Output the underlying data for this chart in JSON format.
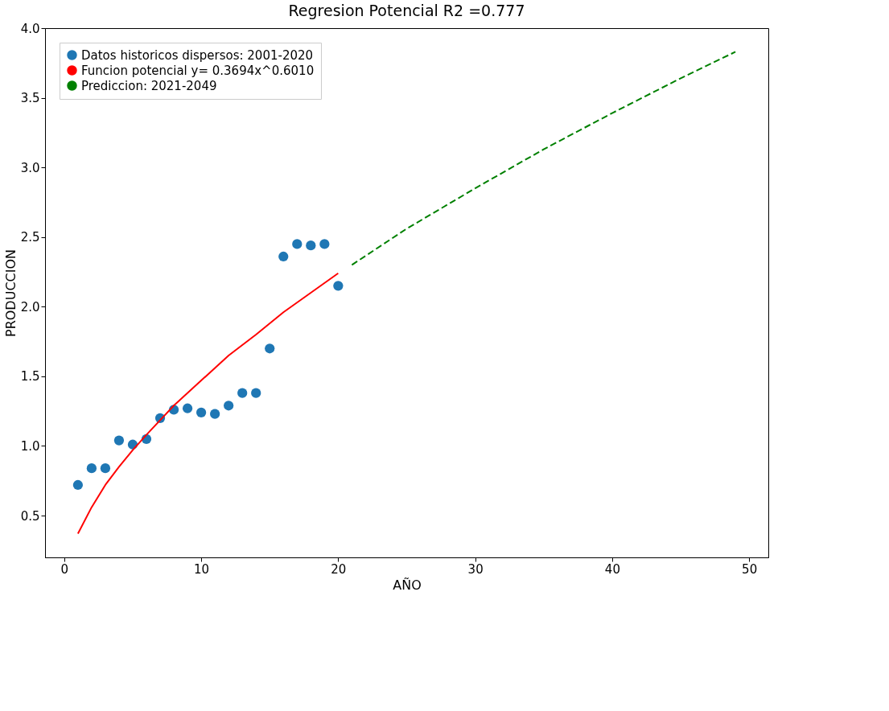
{
  "chart_data": {
    "type": "scatter",
    "title": "Regresion Potencial R2 =0.777",
    "xlabel": "AÑO",
    "ylabel": "PRODUCCION",
    "xlim": [
      -1.4,
      51.4
    ],
    "ylim": [
      0.2,
      4.0
    ],
    "xticks": [
      0,
      10,
      20,
      30,
      40,
      50
    ],
    "yticks": [
      0.5,
      {
        "value": 1,
        "label": "1.0"
      },
      1.5,
      {
        "value": 2,
        "label": "2.0"
      },
      2.5,
      {
        "value": 3,
        "label": "3.0"
      },
      3.5,
      {
        "value": 4,
        "label": "4.0"
      }
    ],
    "grid": false,
    "legend": "top left",
    "series": [
      {
        "name": "Datos historicos dispersos: 2001-2020",
        "type": "scatter",
        "marker": "circle",
        "color": "#1f77b4",
        "x": [
          1,
          2,
          3,
          4,
          5,
          6,
          7,
          8,
          9,
          10,
          11,
          12,
          13,
          14,
          15,
          16,
          17,
          18,
          19,
          20
        ],
        "values": [
          0.72,
          0.84,
          0.84,
          1.04,
          1.01,
          1.05,
          1.2,
          1.26,
          1.27,
          1.24,
          1.23,
          1.29,
          1.38,
          1.38,
          1.7,
          2.36,
          2.45,
          2.44,
          2.45,
          2.15
        ]
      },
      {
        "name": "Funcion potencial y= 0.3694x^0.6010",
        "type": "line",
        "line_style": "solid",
        "color": "#ff0000",
        "x": [
          1,
          2,
          3,
          4,
          5,
          6,
          8,
          10,
          12,
          14,
          16,
          18,
          20
        ],
        "values": [
          0.37,
          0.56,
          0.72,
          0.85,
          0.97,
          1.08,
          1.29,
          1.47,
          1.65,
          1.8,
          1.96,
          2.1,
          2.24
        ]
      },
      {
        "name": "Prediccion: 2021-2049",
        "type": "line",
        "line_style": "dashed",
        "color": "#008000",
        "x": [
          21,
          25,
          30,
          35,
          40,
          45,
          49
        ],
        "values": [
          2.3,
          2.56,
          2.85,
          3.13,
          3.39,
          3.64,
          3.83
        ]
      }
    ]
  }
}
